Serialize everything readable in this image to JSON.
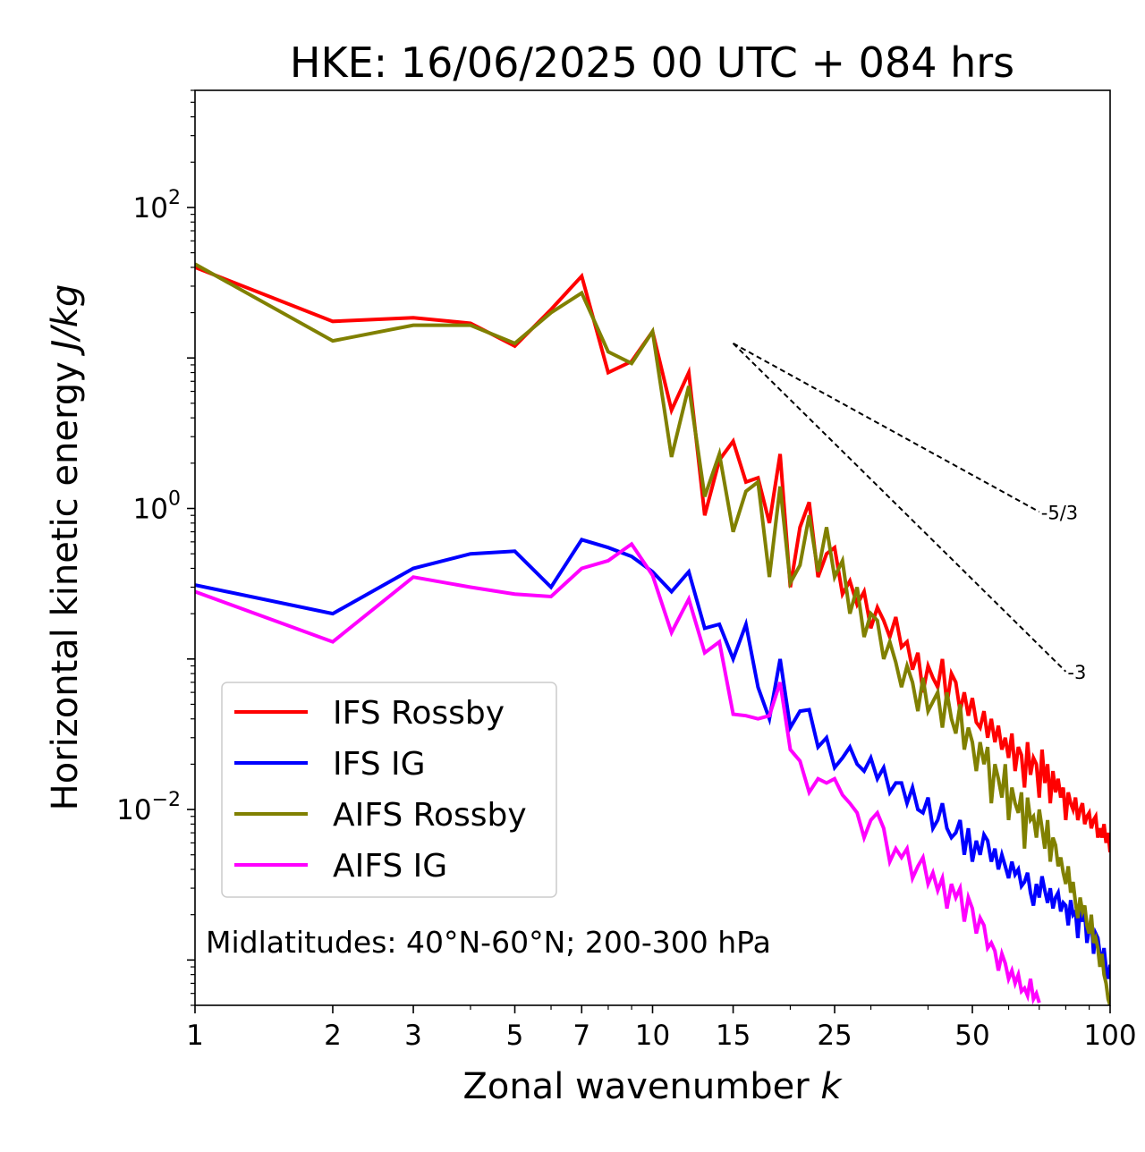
{
  "chart_data": {
    "type": "line",
    "title": "HKE: 16/06/2025 00 UTC + 084 hrs",
    "xlabel": "Zonal wavenumber",
    "xlabel_var": "k",
    "ylabel": "Horizontal kinetic energy",
    "ylabel_units": "J/kg",
    "xscale": "log",
    "yscale": "log",
    "xlim": [
      1,
      100
    ],
    "ylim": [
      0.0005,
      600
    ],
    "x_ticks": [
      {
        "value": 1,
        "label": "1"
      },
      {
        "value": 2,
        "label": "2"
      },
      {
        "value": 3,
        "label": "3"
      },
      {
        "value": 5,
        "label": "5"
      },
      {
        "value": 7,
        "label": "7"
      },
      {
        "value": 10,
        "label": "10"
      },
      {
        "value": 15,
        "label": "15"
      },
      {
        "value": 25,
        "label": "25"
      },
      {
        "value": 50,
        "label": "50"
      },
      {
        "value": 100,
        "label": "100"
      }
    ],
    "y_ticks": [
      {
        "value": 100,
        "base": "10",
        "exp": "2"
      },
      {
        "value": 1,
        "base": "10",
        "exp": "0"
      },
      {
        "value": 0.01,
        "base": "10",
        "exp": "−2"
      }
    ],
    "grid": false,
    "legend_position": "lower-left",
    "annotation": "Midlatitudes: 40°N-60°N; 200-300 hPa",
    "reference_lines": [
      {
        "label": "-5/3",
        "x": [
          15,
          70
        ],
        "y": [
          12.5,
          0.95
        ]
      },
      {
        "label": "-3",
        "x": [
          15,
          80
        ],
        "y": [
          12.5,
          0.0825
        ]
      }
    ],
    "series": [
      {
        "name": "IFS Rossby",
        "color": "#ff0000",
        "x": [
          1,
          2,
          3,
          4,
          5,
          6,
          7,
          8,
          9,
          10,
          11,
          12,
          13,
          14,
          15,
          16,
          17,
          18,
          19,
          20,
          21,
          22,
          23,
          24,
          25,
          26,
          27,
          28,
          29,
          30,
          31,
          32,
          33,
          34,
          35,
          36,
          37,
          38,
          39,
          40,
          41,
          42,
          43,
          44,
          45,
          46,
          47,
          48,
          49,
          50,
          51,
          52,
          53,
          54,
          55,
          56,
          57,
          58,
          59,
          60,
          61,
          62,
          63,
          64,
          65,
          66,
          67,
          68,
          69,
          70,
          71,
          72,
          73,
          74,
          75,
          76,
          77,
          78,
          79,
          80,
          81,
          82,
          83,
          84,
          85,
          86,
          87,
          88,
          89,
          90,
          91,
          92,
          93,
          94,
          95,
          96,
          97,
          98,
          99,
          100
        ],
        "y": [
          40,
          17.5,
          18.5,
          17,
          12,
          21,
          35,
          8,
          9.5,
          15,
          4.5,
          8,
          0.9,
          2.1,
          2.8,
          1.5,
          1.6,
          0.8,
          2.3,
          0.3,
          0.75,
          1.1,
          0.35,
          0.5,
          0.55,
          0.27,
          0.33,
          0.23,
          0.28,
          0.16,
          0.22,
          0.18,
          0.14,
          0.19,
          0.12,
          0.13,
          0.085,
          0.11,
          0.06,
          0.09,
          0.075,
          0.065,
          0.1,
          0.05,
          0.08,
          0.07,
          0.045,
          0.06,
          0.042,
          0.055,
          0.038,
          0.035,
          0.045,
          0.03,
          0.04,
          0.028,
          0.036,
          0.025,
          0.03,
          0.022,
          0.032,
          0.018,
          0.026,
          0.023,
          0.014,
          0.028,
          0.017,
          0.022,
          0.02,
          0.012,
          0.025,
          0.015,
          0.02,
          0.011,
          0.018,
          0.013,
          0.016,
          0.012,
          0.014,
          0.0085,
          0.013,
          0.011,
          0.01,
          0.012,
          0.0085,
          0.01,
          0.011,
          0.008,
          0.009,
          0.0095,
          0.0075,
          0.0085,
          0.009,
          0.0065,
          0.0075,
          0.0065,
          0.008,
          0.006,
          0.007,
          0.0052
        ]
      },
      {
        "name": "IFS IG",
        "color": "#0000ff",
        "x": [
          1,
          2,
          3,
          4,
          5,
          6,
          7,
          8,
          9,
          10,
          11,
          12,
          13,
          14,
          15,
          16,
          17,
          18,
          19,
          20,
          21,
          22,
          23,
          24,
          25,
          26,
          27,
          28,
          29,
          30,
          31,
          32,
          33,
          34,
          35,
          36,
          37,
          38,
          39,
          40,
          41,
          42,
          43,
          44,
          45,
          46,
          47,
          48,
          49,
          50,
          51,
          52,
          53,
          54,
          55,
          56,
          57,
          58,
          59,
          60,
          61,
          62,
          63,
          64,
          65,
          66,
          67,
          68,
          69,
          70,
          71,
          72,
          73,
          74,
          75,
          76,
          77,
          78,
          79,
          80,
          81,
          82,
          83,
          84,
          85,
          86,
          87,
          88,
          89,
          90,
          91,
          92,
          93,
          94,
          95,
          96,
          97,
          98,
          99,
          100
        ],
        "y": [
          0.31,
          0.2,
          0.4,
          0.5,
          0.52,
          0.3,
          0.62,
          0.55,
          0.48,
          0.38,
          0.28,
          0.38,
          0.16,
          0.17,
          0.1,
          0.17,
          0.065,
          0.04,
          0.1,
          0.035,
          0.045,
          0.046,
          0.026,
          0.03,
          0.019,
          0.022,
          0.026,
          0.02,
          0.018,
          0.022,
          0.016,
          0.019,
          0.013,
          0.015,
          0.015,
          0.011,
          0.014,
          0.01,
          0.0095,
          0.012,
          0.0075,
          0.0085,
          0.011,
          0.0075,
          0.0065,
          0.007,
          0.0085,
          0.005,
          0.0075,
          0.0045,
          0.0062,
          0.005,
          0.0068,
          0.0062,
          0.0045,
          0.0055,
          0.004,
          0.005,
          0.0042,
          0.0035,
          0.0045,
          0.0037,
          0.004,
          0.0031,
          0.0033,
          0.0038,
          0.0028,
          0.0023,
          0.0032,
          0.0026,
          0.0036,
          0.0029,
          0.0024,
          0.003,
          0.0022,
          0.0026,
          0.0028,
          0.0021,
          0.0024,
          0.0023,
          0.0017,
          0.0025,
          0.002,
          0.0021,
          0.0014,
          0.0022,
          0.0018,
          0.0021,
          0.0013,
          0.0016,
          0.0019,
          0.0011,
          0.0015,
          0.0014,
          0.0011,
          0.00098,
          0.0012,
          0.00088,
          0.00075,
          0.00093
        ]
      },
      {
        "name": "AIFS Rossby",
        "color": "#808000",
        "x": [
          1,
          2,
          3,
          4,
          5,
          6,
          7,
          8,
          9,
          10,
          11,
          12,
          13,
          14,
          15,
          16,
          17,
          18,
          19,
          20,
          21,
          22,
          23,
          24,
          25,
          26,
          27,
          28,
          29,
          30,
          31,
          32,
          33,
          34,
          35,
          36,
          37,
          38,
          39,
          40,
          41,
          42,
          43,
          44,
          45,
          46,
          47,
          48,
          49,
          50,
          51,
          52,
          53,
          54,
          55,
          56,
          57,
          58,
          59,
          60,
          61,
          62,
          63,
          64,
          65,
          66,
          67,
          68,
          69,
          70,
          71,
          72,
          73,
          74,
          75,
          76,
          77,
          78,
          79,
          80,
          81,
          82,
          83,
          84,
          85,
          86,
          87,
          88,
          89,
          90,
          91,
          92,
          93,
          94,
          95,
          96,
          97,
          98,
          99,
          100
        ],
        "y": [
          42,
          13,
          16.5,
          16.5,
          12.5,
          20,
          27,
          11,
          9.2,
          15,
          2.2,
          6.5,
          1.2,
          2.3,
          0.7,
          1.3,
          1.5,
          0.35,
          1.4,
          0.32,
          0.42,
          0.9,
          0.38,
          0.75,
          0.35,
          0.45,
          0.2,
          0.3,
          0.14,
          0.2,
          0.18,
          0.1,
          0.13,
          0.095,
          0.065,
          0.09,
          0.07,
          0.045,
          0.075,
          0.045,
          0.052,
          0.06,
          0.035,
          0.06,
          0.04,
          0.032,
          0.05,
          0.025,
          0.035,
          0.028,
          0.018,
          0.028,
          0.02,
          0.026,
          0.011,
          0.02,
          0.016,
          0.012,
          0.02,
          0.0085,
          0.014,
          0.011,
          0.0095,
          0.013,
          0.0055,
          0.012,
          0.0085,
          0.009,
          0.0065,
          0.01,
          0.0075,
          0.0055,
          0.0085,
          0.0045,
          0.0065,
          0.0058,
          0.0042,
          0.0048,
          0.0038,
          0.0032,
          0.0042,
          0.0028,
          0.0033,
          0.0024,
          0.0019,
          0.0026,
          0.0021,
          0.0023,
          0.0017,
          0.0015,
          0.002,
          0.0013,
          0.0014,
          0.0012,
          0.0009,
          0.0011,
          0.0008,
          0.0007,
          0.00055,
          0.0005
        ]
      },
      {
        "name": "AIFS IG",
        "color": "#ff00ff",
        "x": [
          1,
          2,
          3,
          4,
          5,
          6,
          7,
          8,
          9,
          10,
          11,
          12,
          13,
          14,
          15,
          16,
          17,
          18,
          19,
          20,
          21,
          22,
          23,
          24,
          25,
          26,
          27,
          28,
          29,
          30,
          31,
          32,
          33,
          34,
          35,
          36,
          37,
          38,
          39,
          40,
          41,
          42,
          43,
          44,
          45,
          46,
          47,
          48,
          49,
          50,
          51,
          52,
          53,
          54,
          55,
          56,
          57,
          58,
          59,
          60,
          61,
          62,
          63,
          64,
          65,
          66,
          67,
          68,
          69,
          70
        ],
        "y": [
          0.28,
          0.13,
          0.35,
          0.3,
          0.27,
          0.26,
          0.4,
          0.45,
          0.58,
          0.36,
          0.15,
          0.25,
          0.11,
          0.13,
          0.043,
          0.042,
          0.04,
          0.042,
          0.07,
          0.025,
          0.021,
          0.013,
          0.016,
          0.015,
          0.016,
          0.0125,
          0.011,
          0.0095,
          0.0065,
          0.0085,
          0.0095,
          0.0075,
          0.0045,
          0.0055,
          0.0048,
          0.0055,
          0.0035,
          0.0042,
          0.0048,
          0.0032,
          0.0038,
          0.0029,
          0.0035,
          0.0022,
          0.0032,
          0.0026,
          0.003,
          0.0018,
          0.0026,
          0.0022,
          0.0015,
          0.0019,
          0.0017,
          0.0012,
          0.0013,
          0.00115,
          0.00085,
          0.0011,
          0.00095,
          0.00075,
          0.00085,
          0.0007,
          0.0008,
          0.00062,
          0.00065,
          0.00058,
          0.00075,
          0.00055,
          0.0006,
          0.00052
        ]
      }
    ]
  }
}
